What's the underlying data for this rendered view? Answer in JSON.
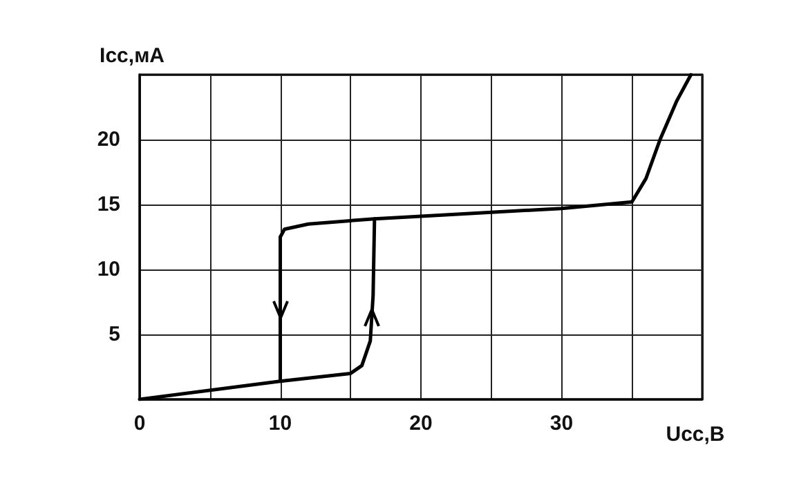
{
  "chart_data": {
    "type": "line",
    "xlabel": "Ucc,В",
    "ylabel": "Icc,мА",
    "xlim": [
      0,
      40
    ],
    "ylim": [
      0,
      25
    ],
    "xticks": [
      0,
      {
        "value": 5,
        "label": null
      },
      10,
      {
        "value": 15,
        "label": null
      },
      20,
      {
        "value": 25,
        "label": null
      },
      30,
      {
        "value": 35,
        "label": null
      },
      {
        "value": 40,
        "label": null
      }
    ],
    "yticks": [
      {
        "value": 0,
        "label": null
      },
      5,
      10,
      15,
      20,
      {
        "value": 25,
        "label": null
      }
    ],
    "grid": true,
    "marker": "none",
    "line_style": "solid",
    "series": [
      {
        "color": "#000000",
        "x": [
          0,
          10,
          15,
          15.8,
          16.4,
          16.6,
          16.7,
          20,
          25,
          30,
          35,
          36,
          37,
          38.2,
          39.2
        ],
        "values": [
          0,
          1.4,
          2.0,
          2.6,
          4.5,
          8,
          13.9,
          14.1,
          14.4,
          14.7,
          15.2,
          17,
          20,
          23,
          25
        ]
      },
      {
        "color": "#000000",
        "x": [
          16.7,
          12,
          10.3,
          10,
          10
        ],
        "values": [
          13.9,
          13.5,
          13.1,
          12.5,
          1.4
        ]
      }
    ]
  }
}
